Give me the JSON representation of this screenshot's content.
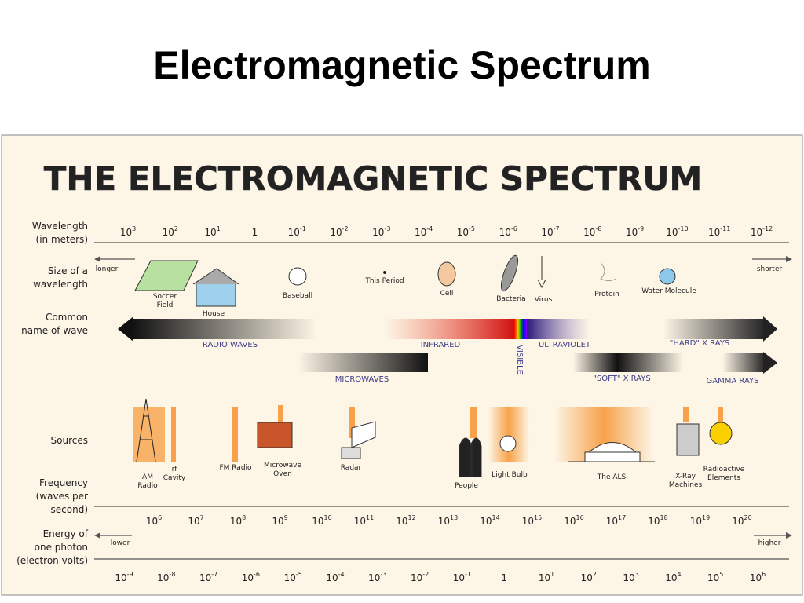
{
  "title": "Electromagnetic Spectrum",
  "diagram": {
    "title": "THE ELECTROMAGNETIC SPECTRUM",
    "row_labels": [
      [
        "Wavelength",
        "(in meters)"
      ],
      [
        "Size of a",
        "wavelength"
      ],
      [
        "Common",
        "name of wave"
      ],
      [
        "Sources"
      ],
      [
        "Frequency",
        "(waves per",
        "second)"
      ],
      [
        "Energy of",
        "one photon",
        "(electron volts)"
      ]
    ],
    "wavelength": [
      {
        "base": "10",
        "exp": "3"
      },
      {
        "base": "10",
        "exp": "2"
      },
      {
        "base": "10",
        "exp": "1"
      },
      {
        "base": "1"
      },
      {
        "base": "10",
        "exp": "-1"
      },
      {
        "base": "10",
        "exp": "-2"
      },
      {
        "base": "10",
        "exp": "-3"
      },
      {
        "base": "10",
        "exp": "-4"
      },
      {
        "base": "10",
        "exp": "-5"
      },
      {
        "base": "10",
        "exp": "-6"
      },
      {
        "base": "10",
        "exp": "-7"
      },
      {
        "base": "10",
        "exp": "-8"
      },
      {
        "base": "10",
        "exp": "-9"
      },
      {
        "base": "10",
        "exp": "-10"
      },
      {
        "base": "10",
        "exp": "-11"
      },
      {
        "base": "10",
        "exp": "-12"
      }
    ],
    "wavelength_ends": [
      "longer",
      "shorter"
    ],
    "sizes": [
      [
        "Soccer",
        "Field"
      ],
      [
        "House"
      ],
      [
        "Baseball"
      ],
      [
        "This Period"
      ],
      [
        "Cell"
      ],
      [
        "Bacteria"
      ],
      [
        "Virus"
      ],
      [
        "Protein"
      ],
      [
        "Water Molecule"
      ]
    ],
    "waves": [
      "RADIO WAVES",
      "INFRARED",
      "VISIBLE",
      "ULTRAVIOLET",
      "\"HARD\" X RAYS",
      "MICROWAVES",
      "\"SOFT\" X RAYS",
      "GAMMA RAYS"
    ],
    "sources": [
      [
        "AM",
        "Radio"
      ],
      [
        "rf",
        "Cavity"
      ],
      [
        "FM Radio"
      ],
      [
        "Microwave",
        "Oven"
      ],
      [
        "Radar"
      ],
      [
        "People"
      ],
      [
        "Light Bulb"
      ],
      [
        "The ALS"
      ],
      [
        "X-Ray",
        "Machines"
      ],
      [
        "Radioactive",
        "Elements"
      ]
    ],
    "frequency": [
      {
        "base": "10",
        "exp": "6"
      },
      {
        "base": "10",
        "exp": "7"
      },
      {
        "base": "10",
        "exp": "8"
      },
      {
        "base": "10",
        "exp": "9"
      },
      {
        "base": "10",
        "exp": "10"
      },
      {
        "base": "10",
        "exp": "11"
      },
      {
        "base": "10",
        "exp": "12"
      },
      {
        "base": "10",
        "exp": "13"
      },
      {
        "base": "10",
        "exp": "14"
      },
      {
        "base": "10",
        "exp": "15"
      },
      {
        "base": "10",
        "exp": "16"
      },
      {
        "base": "10",
        "exp": "17"
      },
      {
        "base": "10",
        "exp": "18"
      },
      {
        "base": "10",
        "exp": "19"
      },
      {
        "base": "10",
        "exp": "20"
      }
    ],
    "energy_ends": [
      "lower",
      "higher"
    ],
    "energy": [
      {
        "base": "10",
        "exp": "-9"
      },
      {
        "base": "10",
        "exp": "-8"
      },
      {
        "base": "10",
        "exp": "-7"
      },
      {
        "base": "10",
        "exp": "-6"
      },
      {
        "base": "10",
        "exp": "-5"
      },
      {
        "base": "10",
        "exp": "-4"
      },
      {
        "base": "10",
        "exp": "-3"
      },
      {
        "base": "10",
        "exp": "-2"
      },
      {
        "base": "10",
        "exp": "-1"
      },
      {
        "base": "1"
      },
      {
        "base": "10",
        "exp": "1"
      },
      {
        "base": "10",
        "exp": "2"
      },
      {
        "base": "10",
        "exp": "3"
      },
      {
        "base": "10",
        "exp": "4"
      },
      {
        "base": "10",
        "exp": "5"
      },
      {
        "base": "10",
        "exp": "6"
      }
    ]
  }
}
